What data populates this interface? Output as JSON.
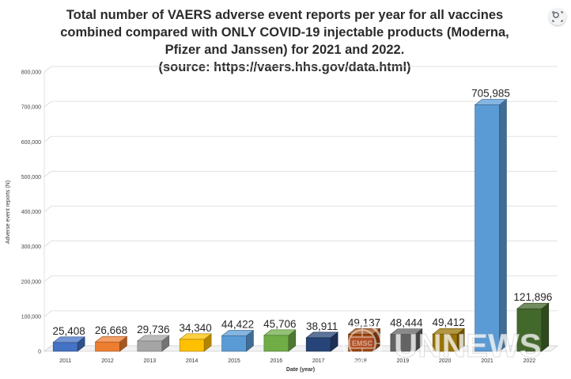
{
  "title": {
    "line1": "Total number of VAERS adverse event reports per year for all vaccines",
    "line2": "combined compared with ONLY COVID-19 injectable products (Moderna,",
    "line3": "Pfizer and Janssen) for 2021 and 2022.",
    "line4": "(source: https://vaers.hhs.gov/data.html)"
  },
  "watermark": {
    "emblem_text": "EMSC",
    "brand_text": "UNNEWS"
  },
  "chart_data": {
    "type": "bar",
    "title": "Total number of VAERS adverse event reports per year for all vaccines combined compared with ONLY COVID-19 injectable products (Moderna, Pfizer and Janssen) for 2021 and 2022. (source: https://vaers.hhs.gov/data.html)",
    "xlabel": "Date (year)",
    "ylabel": "Adverse event reports (N)",
    "ylim": [
      0,
      800000
    ],
    "yticks": [
      "0",
      "100,000",
      "200,000",
      "300,000",
      "400,000",
      "500,000",
      "600,000",
      "700,000",
      "800,000"
    ],
    "categories": [
      "2011",
      "2012",
      "2013",
      "2014",
      "2015",
      "2016",
      "2017",
      "2018",
      "2019",
      "2020",
      "2021",
      "2022"
    ],
    "values": [
      25408,
      26668,
      29736,
      34340,
      44422,
      45706,
      38911,
      49137,
      48444,
      49412,
      705985,
      121896
    ],
    "data_labels": [
      "25,408",
      "26,668",
      "29,736",
      "34,340",
      "44,422",
      "45,706",
      "38,911",
      "49,137",
      "48,444",
      "49,412",
      "705,985",
      "121,896"
    ],
    "colors": [
      "#4472c4",
      "#ed7d31",
      "#a5a5a5",
      "#ffc000",
      "#5b9bd5",
      "#70ad47",
      "#264478",
      "#9e480e",
      "#636363",
      "#997300",
      "#5b9bd5",
      "#43682b"
    ],
    "grid": true,
    "legend": "none",
    "style": "3d-column"
  }
}
